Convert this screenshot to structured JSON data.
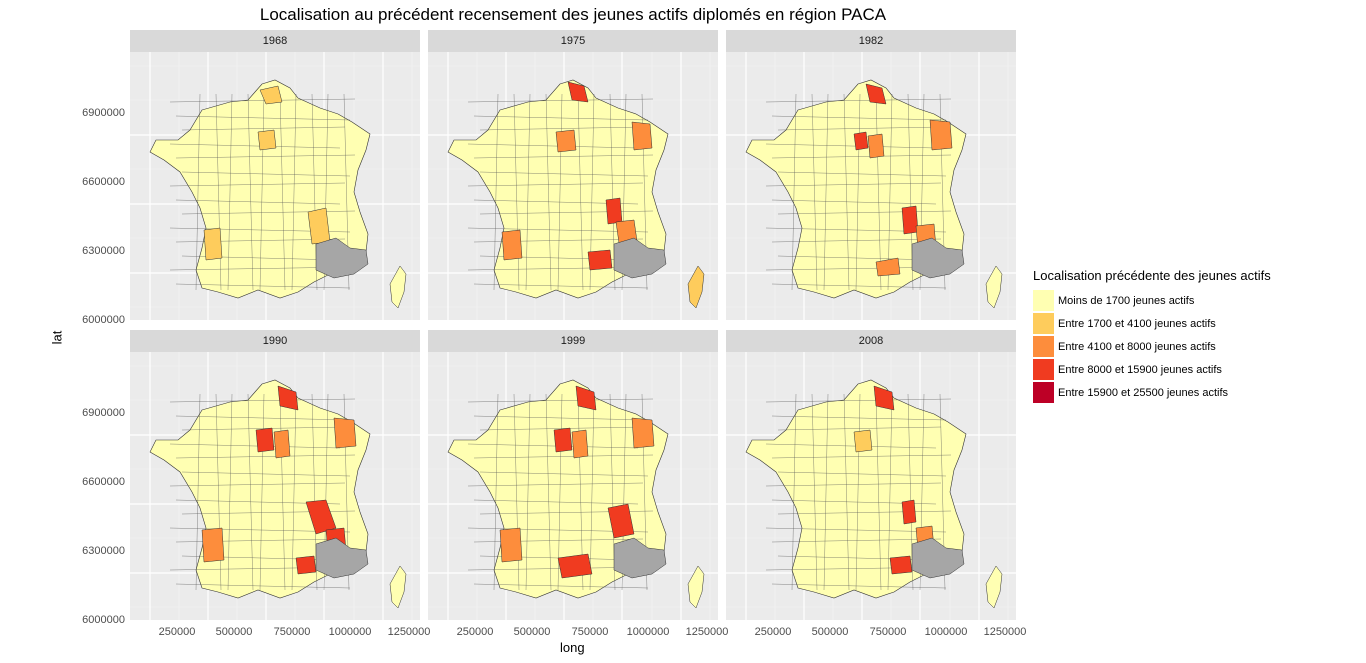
{
  "title": "Localisation au précédent recensement des jeunes actifs diplomés en région PACA",
  "axes": {
    "xlabel": "long",
    "ylabel": "lat",
    "x_ticks": [
      "250000",
      "500000",
      "750000",
      "1000000",
      "1250000"
    ],
    "y_ticks": [
      "6000000",
      "6300000",
      "6600000",
      "6900000"
    ]
  },
  "legend": {
    "title": "Localisation précédente des jeunes actifs",
    "items": [
      {
        "label": "Moins de 1700 jeunes actifs",
        "color": "#ffffb2"
      },
      {
        "label": "Entre 1700 et 4100 jeunes actifs",
        "color": "#fecc5c"
      },
      {
        "label": "Entre 4100 et 8000 jeunes actifs",
        "color": "#fd8d3c"
      },
      {
        "label": "Entre 8000 et 15900 jeunes actifs",
        "color": "#f03b20"
      },
      {
        "label": "Entre 15900 et 25500 jeunes actifs",
        "color": "#bd0026"
      }
    ],
    "na_color": "#a6a6a6"
  },
  "panels": [
    {
      "year": "1968"
    },
    {
      "year": "1975"
    },
    {
      "year": "1982"
    },
    {
      "year": "1990"
    },
    {
      "year": "1999"
    },
    {
      "year": "2008"
    }
  ]
}
